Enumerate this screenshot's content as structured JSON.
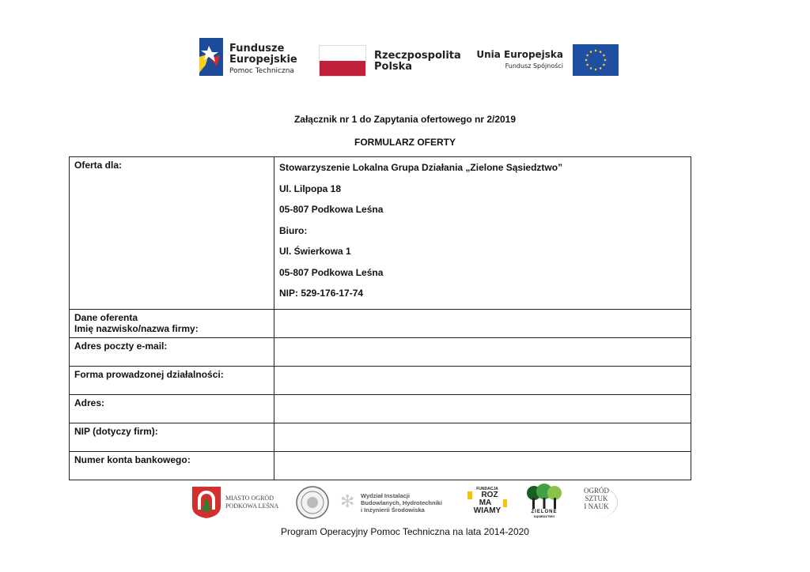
{
  "header_logos": {
    "fe": {
      "line1": "Fundusze",
      "line2": "Europejskie",
      "line3": "Pomoc Techniczna"
    },
    "rp": {
      "line1": "Rzeczpospolita",
      "line2": "Polska"
    },
    "ue": {
      "line1": "Unia Europejska",
      "line2": "Fundusz Spójności"
    }
  },
  "colors": {
    "pl_red": "#c0203a",
    "eu_blue": "#1f4fa3",
    "eu_star": "#f2d21b",
    "fe_blue": "#1e4a9a",
    "fe_red": "#d52b2b",
    "fe_yellow": "#f5d21a"
  },
  "doc": {
    "title": "Załącznik nr 1 do Zapytania ofertowego nr 2/2019",
    "subtitle": "FORMULARZ OFERTY"
  },
  "table": {
    "offer_label": "Oferta dla:",
    "offer_lines": [
      "Stowarzyszenie Lokalna Grupa Działania „Zielone Sąsiedztwo”",
      "Ul. Lilpopa 18",
      "05-807 Podkowa Leśna",
      "Biuro:",
      "Ul. Świerkowa 1",
      "05-807 Podkowa Leśna",
      "NIP: 529-176-17-74"
    ],
    "rows": [
      {
        "label": "Dane oferenta",
        "label2": "Imię nazwisko/nazwa firmy:",
        "value": ""
      },
      {
        "label": "Adres poczty e-mail:",
        "value": ""
      },
      {
        "label": "Forma prowadzonej działalności:",
        "value": ""
      },
      {
        "label": "Adres:",
        "value": ""
      },
      {
        "label": "NIP (dotyczy firm):",
        "value": ""
      },
      {
        "label": "Numer konta bankowego:",
        "value": ""
      }
    ]
  },
  "footer_logos": {
    "miasto": {
      "line1": "MIASTO OGRÓD",
      "line2": "PODKOWA LEŚNA"
    },
    "wydzial": {
      "line1": "Wydział Instalacji",
      "line2": "Budowlanych, Hydrotechniki",
      "line3": "i Inżynierii Środowiska"
    },
    "rozmawiamy": {
      "line1": "FUNDACJA",
      "line2": "ROZ",
      "line3": "MA",
      "line4": "WIAMY"
    },
    "zielone": {
      "line1": "ZIELONE",
      "line2": "SĄSIEDZTWO"
    },
    "ogrod": {
      "line1": "OGRÓD",
      "line2": "SZTUK",
      "line3": "I NAUK"
    }
  },
  "footer": {
    "program": "Program Operacyjny Pomoc Techniczna na lata 2014-2020"
  }
}
